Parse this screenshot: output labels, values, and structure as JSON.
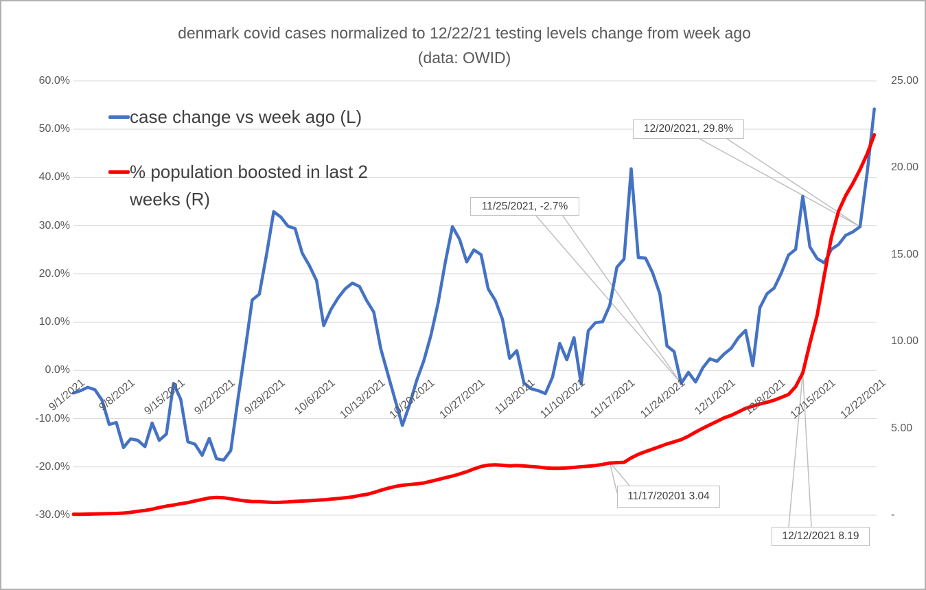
{
  "title": {
    "line1": "denmark covid cases normalized to 12/22/21 testing levels change from week ago",
    "line2": "(data: OWID)"
  },
  "legend": [
    {
      "label": "case change vs week ago (L)",
      "color": "#4472C4"
    },
    {
      "label": "% population boosted in last 2 weeks (R)",
      "color": "#FF0000"
    }
  ],
  "annotations": [
    {
      "text": "12/20/2021, 29.8%"
    },
    {
      "text": "11/25/2021, -2.7%"
    },
    {
      "text": "11/17/20201 3.04"
    },
    {
      "text": "12/12/2021 8.19"
    }
  ],
  "colors": {
    "series_blue": "#4472C4",
    "series_red": "#FF0000",
    "gridline": "#D9D9D9",
    "callout_line": "#BFBFBF",
    "axis_text": "#595959"
  },
  "axes": {
    "left_ticks": [
      "60.0%",
      "50.0%",
      "40.0%",
      "30.0%",
      "20.0%",
      "10.0%",
      "0.0%",
      "-10.0%",
      "-20.0%",
      "-30.0%"
    ],
    "right_ticks": [
      "25.00",
      "20.00",
      "15.00",
      "10.00",
      "5.00",
      "-"
    ],
    "x_ticks": [
      "9/1/2021",
      "9/8/2021",
      "9/15/2021",
      "9/22/2021",
      "9/29/2021",
      "10/6/2021",
      "10/13/2021",
      "10/20/2021",
      "10/27/2021",
      "11/3/2021",
      "11/10/2021",
      "11/17/2021",
      "11/24/2021",
      "12/1/2021",
      "12/8/2021",
      "12/15/2021",
      "12/22/2021"
    ]
  },
  "chart_data": {
    "type": "line",
    "title": "denmark covid cases normalized to 12/22/21 testing levels change from week ago (data: OWID)",
    "x_start": "9/1/2021",
    "x_end": "12/22/2021",
    "x_frequency": "daily",
    "x_tick_labels": [
      "9/1/2021",
      "9/8/2021",
      "9/15/2021",
      "9/22/2021",
      "9/29/2021",
      "10/6/2021",
      "10/13/2021",
      "10/20/2021",
      "10/27/2021",
      "11/3/2021",
      "11/10/2021",
      "11/17/2021",
      "11/24/2021",
      "12/1/2021",
      "12/8/2021",
      "12/15/2021",
      "12/22/2021"
    ],
    "left_axis": {
      "min": -30,
      "max": 60,
      "unit": "%",
      "tick_step": 10
    },
    "right_axis": {
      "min": 0,
      "max": 25,
      "tick_step": 5
    },
    "grid": "horizontal",
    "legend_position": "top-left-inside",
    "series": [
      {
        "name": "case change vs week ago (L)",
        "axis": "left",
        "unit": "%",
        "color": "#4472C4",
        "values": [
          -4.7,
          -4.2,
          -3.5,
          -4.0,
          -6.2,
          -11.2,
          -10.8,
          -16.0,
          -14.2,
          -14.5,
          -15.8,
          -10.9,
          -14.5,
          -13.2,
          -2.7,
          -6.0,
          -14.8,
          -15.3,
          -17.6,
          -14.1,
          -18.3,
          -18.6,
          -16.6,
          -6.0,
          4.1,
          14.6,
          15.8,
          24.0,
          32.9,
          31.8,
          29.9,
          29.4,
          24.3,
          21.7,
          18.6,
          9.3,
          12.6,
          15.0,
          16.9,
          18.1,
          17.4,
          14.5,
          12.1,
          4.4,
          -0.9,
          -6.2,
          -11.4,
          -7.1,
          -2.1,
          2.0,
          7.3,
          14.0,
          22.4,
          29.8,
          27.2,
          22.5,
          25.0,
          24.0,
          16.9,
          14.5,
          10.6,
          2.5,
          4.1,
          -2.6,
          -3.8,
          -4.2,
          -4.8,
          -1.4,
          5.6,
          2.2,
          6.8,
          -2.8,
          8.2,
          9.9,
          10.1,
          13.5,
          21.4,
          23.1,
          41.8,
          23.4,
          23.3,
          20.2,
          15.9,
          5.1,
          3.9,
          -2.7,
          -0.4,
          -2.4,
          0.5,
          2.4,
          1.9,
          3.4,
          4.6,
          6.8,
          8.3,
          1.0,
          13.0,
          15.9,
          17.1,
          20.2,
          23.9,
          25.1,
          36.1,
          25.6,
          23.2,
          22.3,
          25.1,
          26.1,
          28.0,
          28.7,
          29.8,
          41.0,
          54.2
        ]
      },
      {
        "name": "% population boosted in last 2 weeks (R)",
        "axis": "right",
        "color": "#FF0000",
        "values": [
          0.05,
          0.05,
          0.06,
          0.07,
          0.08,
          0.09,
          0.1,
          0.12,
          0.16,
          0.22,
          0.27,
          0.34,
          0.44,
          0.52,
          0.58,
          0.66,
          0.72,
          0.82,
          0.9,
          0.99,
          1.02,
          1.0,
          0.94,
          0.88,
          0.82,
          0.78,
          0.78,
          0.75,
          0.73,
          0.74,
          0.76,
          0.79,
          0.81,
          0.83,
          0.86,
          0.88,
          0.92,
          0.96,
          1.0,
          1.05,
          1.13,
          1.19,
          1.3,
          1.43,
          1.55,
          1.65,
          1.72,
          1.76,
          1.8,
          1.85,
          1.95,
          2.05,
          2.15,
          2.25,
          2.37,
          2.5,
          2.66,
          2.8,
          2.88,
          2.9,
          2.87,
          2.84,
          2.86,
          2.83,
          2.8,
          2.77,
          2.72,
          2.7,
          2.7,
          2.72,
          2.75,
          2.79,
          2.82,
          2.86,
          2.92,
          3.0,
          3.02,
          3.04,
          3.3,
          3.5,
          3.66,
          3.8,
          3.95,
          4.1,
          4.22,
          4.35,
          4.55,
          4.78,
          5.0,
          5.2,
          5.4,
          5.6,
          5.75,
          5.95,
          6.15,
          6.28,
          6.4,
          6.5,
          6.62,
          6.78,
          6.95,
          7.4,
          8.19,
          9.9,
          11.5,
          13.8,
          16.0,
          17.5,
          18.4,
          19.1,
          19.9,
          20.8,
          21.9
        ]
      }
    ],
    "annotated_points": [
      {
        "date": "12/20/2021",
        "series": "case change vs week ago (L)",
        "value": "29.8%"
      },
      {
        "date": "11/25/2021",
        "series": "case change vs week ago (L)",
        "value": "-2.7%"
      },
      {
        "date": "11/17/2021",
        "series": "% population boosted in last 2 weeks (R)",
        "value": 3.04
      },
      {
        "date": "12/12/2021",
        "series": "% population boosted in last 2 weeks (R)",
        "value": 8.19
      }
    ]
  }
}
